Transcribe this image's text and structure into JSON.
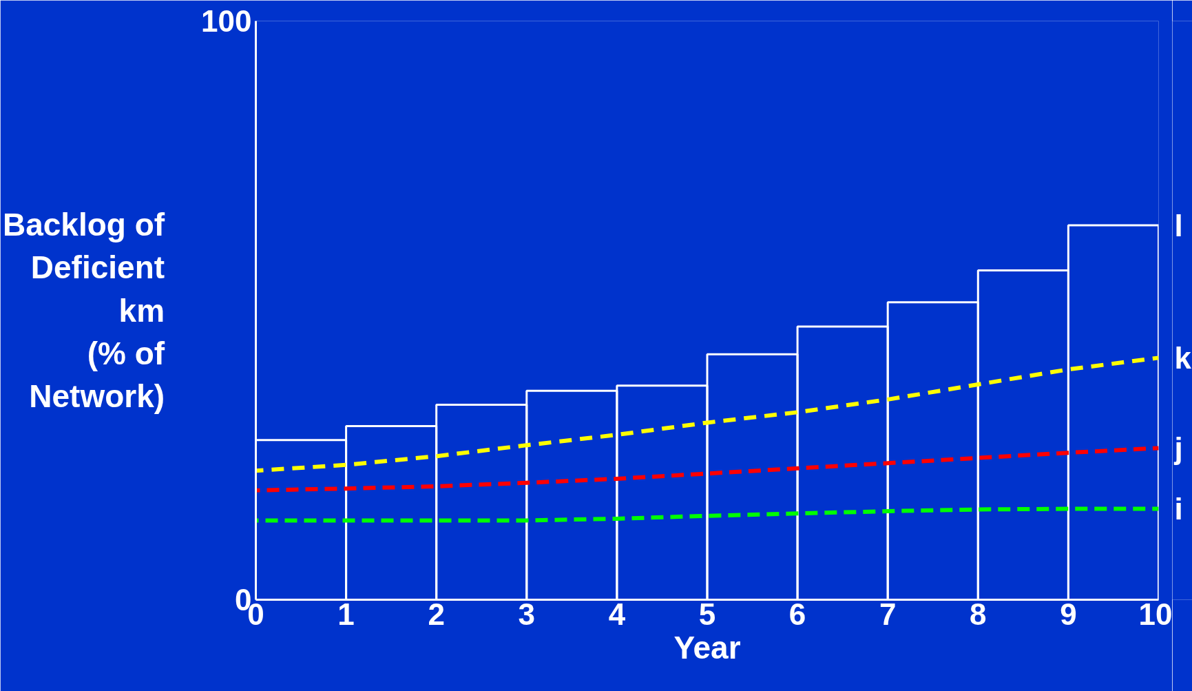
{
  "chart_data": {
    "type": "histogram",
    "xlabel": "Year",
    "ylabel": "Backlog of\nDeficient\nkm\n(% of\nNetwork)",
    "bins": [
      0,
      1,
      2,
      3,
      4,
      5,
      6,
      7,
      8,
      9,
      10
    ],
    "values": [
      27.6,
      30.0,
      33.7,
      36.1,
      37.0,
      42.4,
      47.2,
      51.4,
      56.9,
      64.7
    ],
    "color": "#ffffff",
    "annotations": [
      {
        "text": "l",
        "x": 10,
        "y": 64.7
      }
    ],
    "series": [
      {
        "name": "k",
        "type": "line",
        "color": "#ffff00",
        "x": [
          0,
          1,
          2,
          3,
          4,
          5,
          6,
          7,
          8,
          9,
          10
        ],
        "values": [
          22.3,
          23.3,
          24.8,
          26.7,
          28.5,
          30.6,
          32.4,
          34.6,
          37.2,
          39.8,
          41.8
        ]
      },
      {
        "name": "j",
        "type": "line",
        "color": "#ff0000",
        "x": [
          0,
          1,
          2,
          3,
          4,
          5,
          6,
          7,
          8,
          9,
          10
        ],
        "values": [
          18.9,
          19.2,
          19.6,
          20.2,
          20.9,
          21.8,
          22.7,
          23.6,
          24.5,
          25.4,
          26.2
        ]
      },
      {
        "name": "i",
        "type": "line",
        "color": "#00ff00",
        "x": [
          0,
          1,
          2,
          3,
          4,
          5,
          6,
          7,
          8,
          9,
          10
        ],
        "values": [
          13.7,
          13.7,
          13.7,
          13.7,
          14.0,
          14.5,
          14.9,
          15.3,
          15.6,
          15.7,
          15.7
        ]
      }
    ],
    "xlim": [
      0,
      10
    ],
    "xticks": [
      0,
      1,
      2,
      3,
      4,
      5,
      6,
      7,
      8,
      9,
      10
    ],
    "ylim": [
      0,
      100
    ],
    "yticks": [
      0,
      100
    ],
    "line_style": "dashed",
    "marker": "none",
    "grid": false,
    "legend": false
  }
}
